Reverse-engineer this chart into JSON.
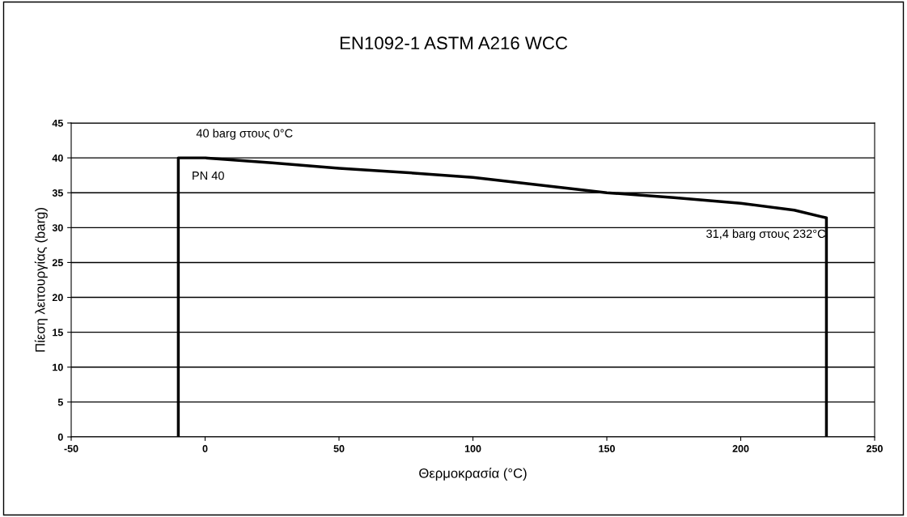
{
  "chart_data": {
    "type": "line",
    "title": "EN1092-1 ASTM A216 WCC",
    "xlabel": "Θερμοκρασία (°C)",
    "ylabel": "Πίεση λειτουργίας (barg)",
    "series": [
      {
        "color": "#000000",
        "x": [
          -10,
          -10,
          0,
          25,
          50,
          75,
          100,
          125,
          150,
          175,
          200,
          220,
          232,
          232
        ],
        "values": [
          0,
          40,
          40,
          39.3,
          38.5,
          37.9,
          37.2,
          36.1,
          35.0,
          34.3,
          33.5,
          32.5,
          31.4,
          0
        ]
      }
    ],
    "xlim": [
      -50,
      250
    ],
    "xticks": [
      -50,
      0,
      50,
      100,
      150,
      200,
      250
    ],
    "ylim": [
      0,
      45
    ],
    "yticks": [
      0,
      5,
      10,
      15,
      20,
      25,
      30,
      35,
      40,
      45
    ],
    "grid": "y",
    "legend": false,
    "marker": "none",
    "line_style": "solid",
    "annotations": [
      {
        "text": "40 barg στους 0°C",
        "x": 0,
        "y": 40
      },
      "PN 40",
      "31,4 barg στους 232°C"
    ]
  }
}
